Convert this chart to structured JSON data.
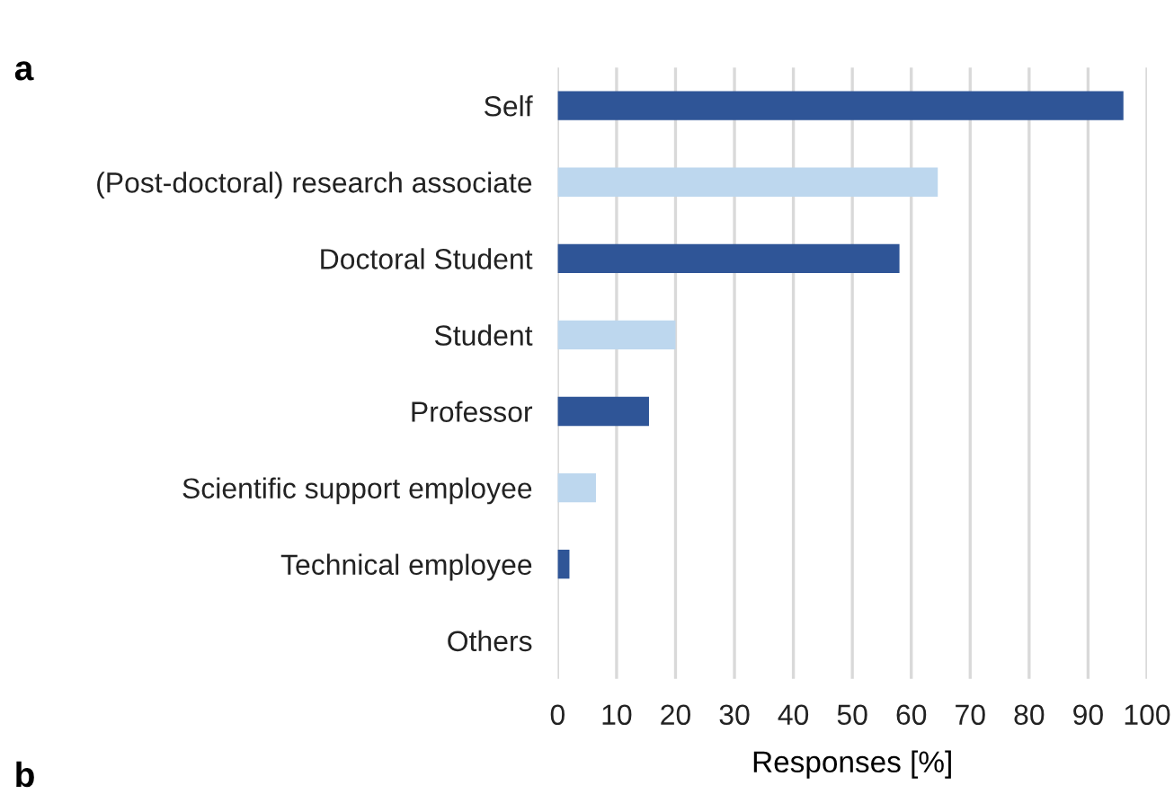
{
  "chart_data": {
    "type": "bar",
    "orientation": "horizontal",
    "xlabel": "Responses [%]",
    "categories": [
      "Self",
      "(Post-doctoral) research associate",
      "Doctoral Student",
      "Student",
      "Professor",
      "Scientific support employee",
      "Technical employee",
      "Others"
    ],
    "values": [
      96,
      64.5,
      58,
      20,
      15.5,
      6.5,
      2,
      0
    ],
    "colors": [
      "#2f5597",
      "#bdd7ee",
      "#2f5597",
      "#bdd7ee",
      "#2f5597",
      "#bdd7ee",
      "#2f5597",
      "#bdd7ee"
    ],
    "xlim": [
      0,
      100
    ],
    "xticks": [
      0,
      10,
      20,
      30,
      40,
      50,
      60,
      70,
      80,
      90,
      100
    ],
    "grid": "x",
    "annotations": [
      "a",
      "b"
    ]
  }
}
